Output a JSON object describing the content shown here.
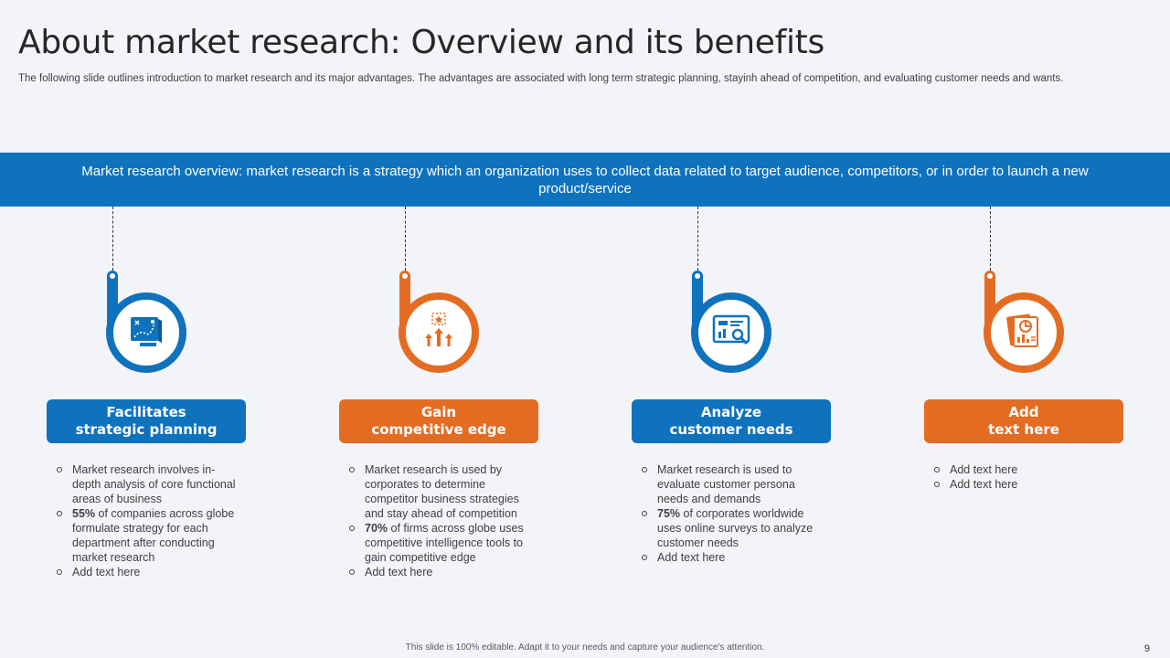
{
  "title": "About market research: Overview and its benefits",
  "subtitle": "The following slide outlines introduction to market research and its major advantages. The advantages are associated with long term strategic planning, stayinh ahead of competition, and evaluating customer needs and wants.",
  "banner": "Market research overview: market research is a strategy which an organization uses to collect data related to target audience, competitors, or in order to launch a new product/service",
  "colors": {
    "blue": "#0e72bd",
    "orange": "#e36c22"
  },
  "columns": [
    {
      "icon": "strategy-map-icon",
      "heading_line1": "Facilitates",
      "heading_line2": "strategic planning",
      "bullets": [
        {
          "strong": "",
          "text": "Market research involves in-depth analysis of core functional areas of business"
        },
        {
          "strong": "55%",
          "text": " of companies across globe formulate strategy for each department after conducting market research"
        },
        {
          "strong": "",
          "text": "Add text here"
        }
      ]
    },
    {
      "icon": "growth-arrows-icon",
      "heading_line1": "Gain",
      "heading_line2": "competitive edge",
      "bullets": [
        {
          "strong": "",
          "text": "Market research is used by corporates to determine competitor business strategies and stay ahead of competition"
        },
        {
          "strong": "70%",
          "text": " of firms across globe uses competitive intelligence tools to gain competitive edge"
        },
        {
          "strong": "",
          "text": "Add text here"
        }
      ]
    },
    {
      "icon": "analytics-search-icon",
      "heading_line1": "Analyze",
      "heading_line2": "customer needs",
      "bullets": [
        {
          "strong": "",
          "text": "Market research is used to evaluate customer persona needs and demands"
        },
        {
          "strong": "75%",
          "text": " of corporates worldwide uses online surveys to analyze customer needs"
        },
        {
          "strong": "",
          "text": "Add text here"
        }
      ]
    },
    {
      "icon": "report-chart-icon",
      "heading_line1": "Add",
      "heading_line2": "text here",
      "bullets": [
        {
          "strong": "",
          "text": "Add text here"
        },
        {
          "strong": "",
          "text": "Add text here"
        }
      ]
    }
  ],
  "footer": "This slide is 100% editable. Adapt it to your needs and capture your audience's attention.",
  "page_number": "9"
}
